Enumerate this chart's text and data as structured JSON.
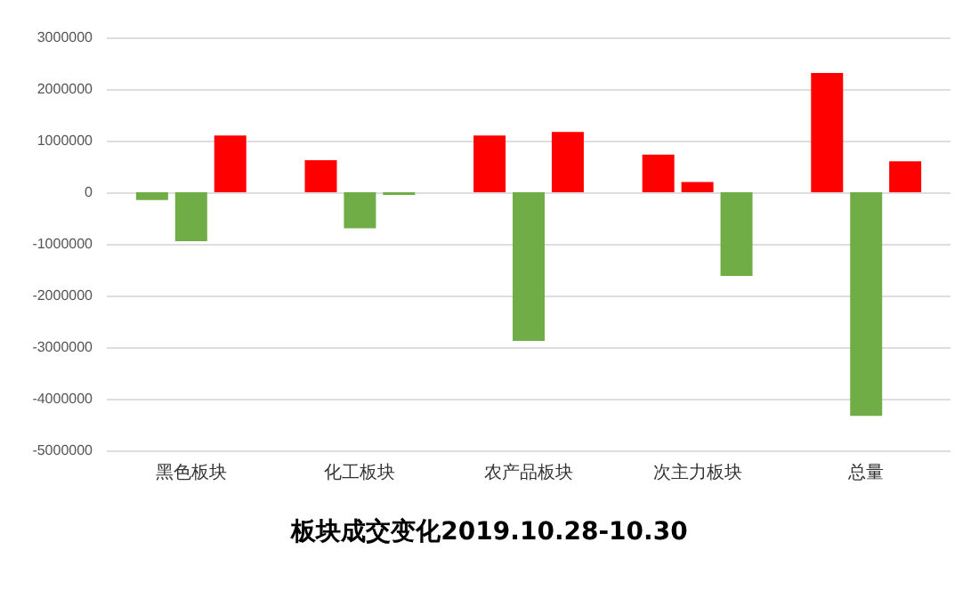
{
  "chart_data": {
    "type": "bar",
    "title": "板块成交变化2019.10.28-10.30",
    "categories": [
      "黑色板块",
      "化工板块",
      "农产品板块",
      "次主力板块",
      "总量"
    ],
    "series": [
      {
        "values": [
          -150000,
          620000,
          1100000,
          730000,
          2310000
        ],
        "colors": [
          "#70ad47",
          "#ff0000",
          "#ff0000",
          "#ff0000",
          "#ff0000"
        ]
      },
      {
        "values": [
          -950000,
          -700000,
          -2880000,
          200000,
          -4330000
        ],
        "colors": [
          "#70ad47",
          "#70ad47",
          "#70ad47",
          "#ff0000",
          "#70ad47"
        ]
      },
      {
        "values": [
          1100000,
          -50000,
          1170000,
          -1620000,
          600000
        ],
        "colors": [
          "#ff0000",
          "#70ad47",
          "#ff0000",
          "#70ad47",
          "#ff0000"
        ]
      }
    ],
    "ylim": [
      -5000000,
      3000000
    ],
    "yticks": [
      -5000000,
      -4000000,
      -3000000,
      -2000000,
      -1000000,
      0,
      1000000,
      2000000,
      3000000
    ],
    "grid": "y"
  }
}
